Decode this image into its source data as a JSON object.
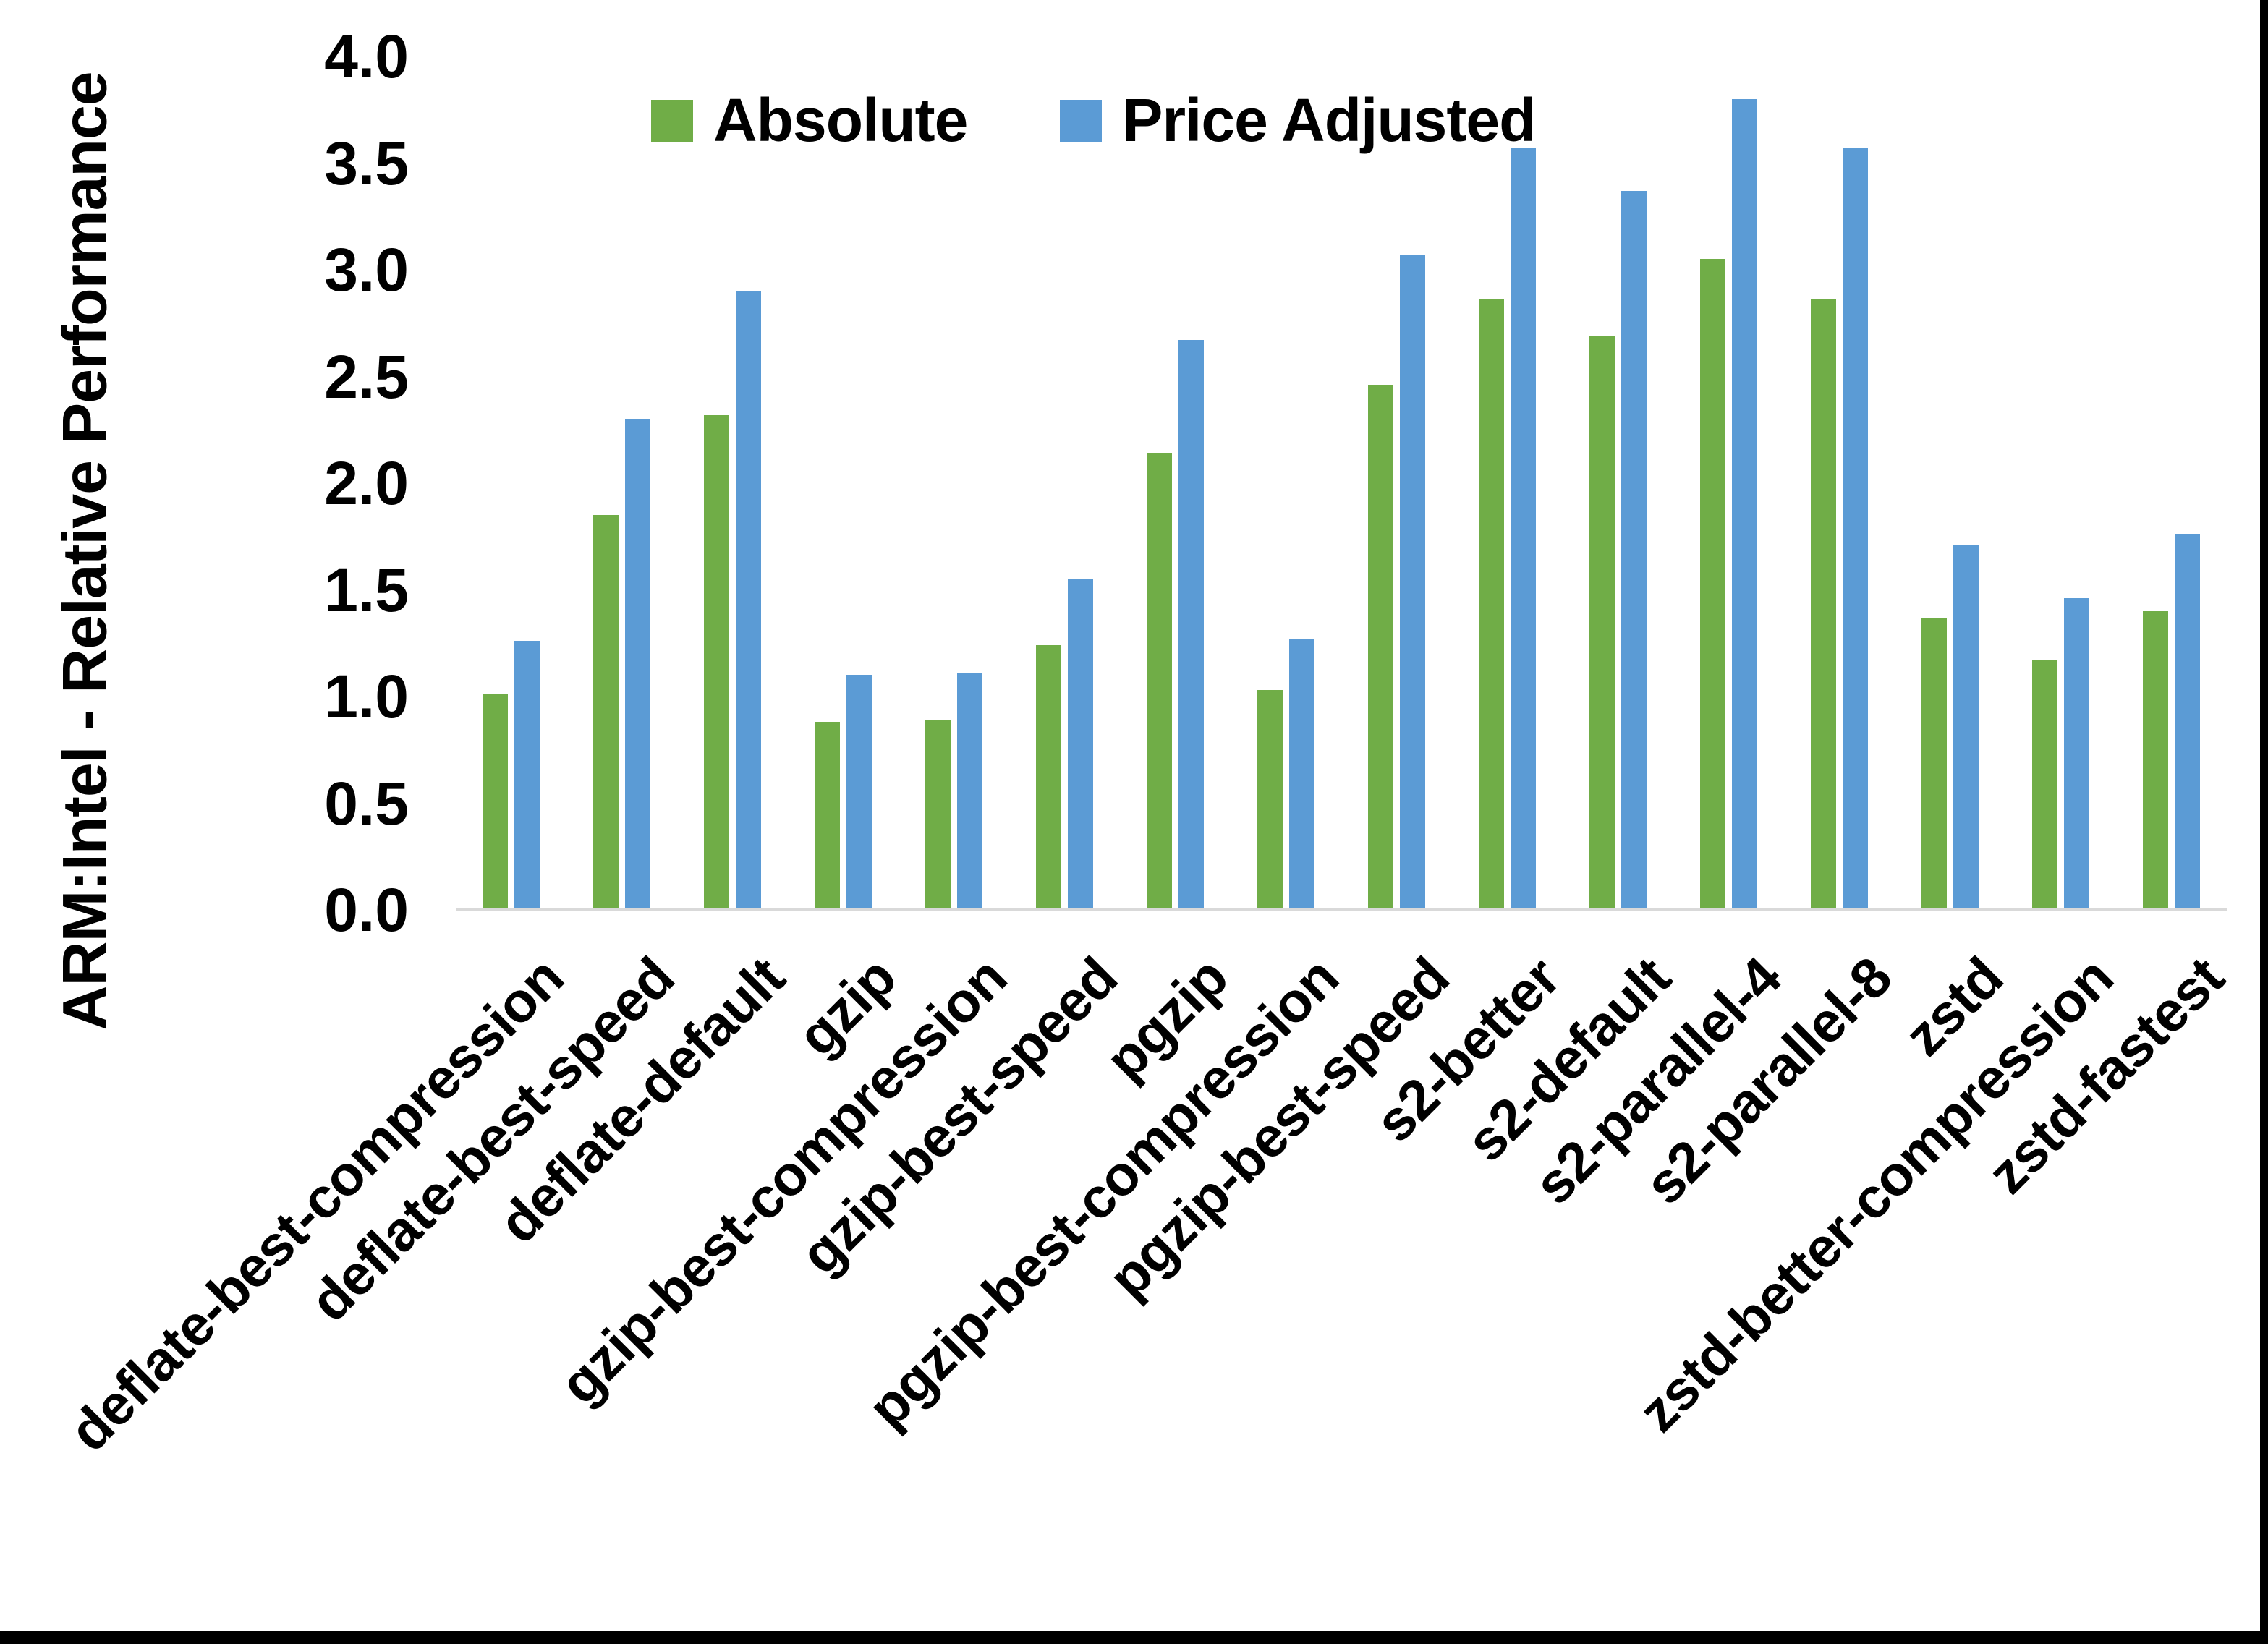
{
  "chart_data": {
    "type": "bar",
    "title": "",
    "ylabel": "ARM:Intel - Relative Performance",
    "xlabel": "",
    "ylim": [
      0.0,
      4.0
    ],
    "ytick_step": 0.5,
    "yticks": [
      "0.0",
      "0.5",
      "1.0",
      "1.5",
      "2.0",
      "2.5",
      "3.0",
      "3.5",
      "4.0"
    ],
    "grid": false,
    "legend_position": "top-center",
    "categories": [
      "deflate-best-compression",
      "deflate-best-speed",
      "deflate-default",
      "gzip",
      "gzip-best-compression",
      "gzip-best-speed",
      "pgzip",
      "pgzip-best-compression",
      "pgzip-best-speed",
      "s2-better",
      "s2-default",
      "s2-parallel-4",
      "s2-parallel-8",
      "zstd",
      "zstd-better-compression",
      "zstd-fastest"
    ],
    "series": [
      {
        "name": "Absolute",
        "color": "#70AD47",
        "values": [
          1.01,
          1.85,
          2.32,
          0.88,
          0.89,
          1.24,
          2.14,
          1.03,
          2.46,
          2.86,
          2.69,
          3.05,
          2.86,
          1.37,
          1.17,
          1.4
        ]
      },
      {
        "name": "Price Adjusted",
        "color": "#5B9BD5",
        "values": [
          1.26,
          2.3,
          2.9,
          1.1,
          1.11,
          1.55,
          2.67,
          1.27,
          3.07,
          3.57,
          3.37,
          3.8,
          3.57,
          1.71,
          1.46,
          1.76
        ]
      }
    ],
    "axis_line_color": "#d9d9d9",
    "text_color": "#000000"
  }
}
